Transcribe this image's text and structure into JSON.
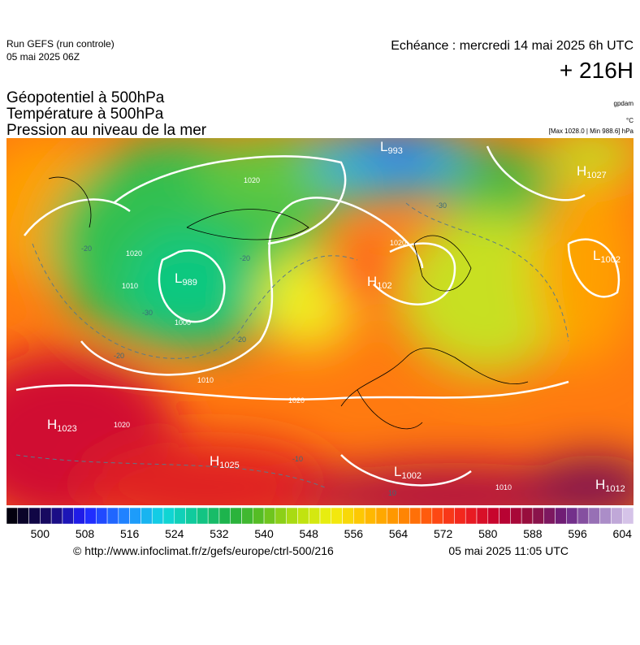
{
  "header": {
    "run": "Run GEFS (run controle)",
    "date": "05 mai 2025 06Z",
    "echeance": "Echéance : mercredi 14 mai 2025 6h UTC",
    "lead": "+ 216H",
    "titles": [
      "Géopotentiel à 500hPa",
      "Température à 500hPa",
      "Pression au niveau de la mer"
    ],
    "units": [
      "gpdam",
      "°C",
      "[Max 1028.0 | Min 988.6] hPa"
    ]
  },
  "map": {
    "centers": [
      {
        "kind": "L",
        "value": "993"
      },
      {
        "kind": "H",
        "value": "1027"
      },
      {
        "kind": "L",
        "value": "1002"
      },
      {
        "kind": "L",
        "value": "989"
      },
      {
        "kind": "H",
        "value": "102"
      },
      {
        "kind": "H",
        "value": "1023"
      },
      {
        "kind": "H",
        "value": "1025"
      },
      {
        "kind": "L",
        "value": "1002"
      },
      {
        "kind": "H",
        "value": "1012"
      }
    ],
    "isobar_labels": [
      "1020",
      "1020",
      "1020",
      "1020",
      "1020",
      "1010",
      "1010",
      "1010",
      "1000"
    ],
    "temperature_labels": [
      "-20",
      "-20",
      "-20",
      "-20",
      "-30",
      "-30",
      "-10",
      "10"
    ]
  },
  "colorbar": {
    "range": [
      494,
      606
    ],
    "step": 2,
    "ticks": [
      500,
      508,
      516,
      524,
      532,
      540,
      548,
      556,
      564,
      572,
      580,
      588,
      596,
      604
    ],
    "stops": [
      [
        494,
        "#000000"
      ],
      [
        502,
        "#1a0a6e"
      ],
      [
        508,
        "#2020ff"
      ],
      [
        516,
        "#2090ff"
      ],
      [
        522,
        "#10d8e0"
      ],
      [
        528,
        "#10c890"
      ],
      [
        534,
        "#20b040"
      ],
      [
        540,
        "#60c020"
      ],
      [
        546,
        "#b8e010"
      ],
      [
        552,
        "#f0f010"
      ],
      [
        558,
        "#ffc000"
      ],
      [
        564,
        "#ff9000"
      ],
      [
        570,
        "#ff5010"
      ],
      [
        576,
        "#f02020"
      ],
      [
        582,
        "#c00030"
      ],
      [
        588,
        "#901040"
      ],
      [
        594,
        "#6a2080"
      ],
      [
        600,
        "#a080c0"
      ],
      [
        606,
        "#e0d0f0"
      ]
    ]
  },
  "footer": {
    "url": "© http://www.infoclimat.fr/z/gefs/europe/ctrl-500/216",
    "time": "05 mai 2025 11:05 UTC"
  }
}
